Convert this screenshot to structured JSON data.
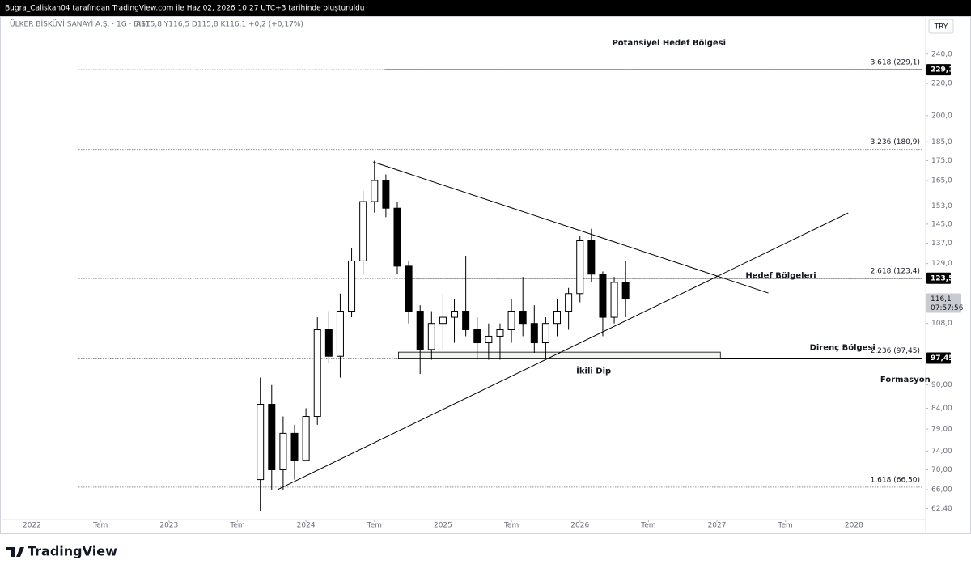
{
  "header": "Bugra_Caliskan04 tarafından TradingView.com ile Haz 02, 2026 10:27 UTC+3 tarihinde oluşturuldu",
  "symbol": "ÜLKER BİSKÜVİ SANAYİ A.Ş. · 1G · BIST",
  "ohlc_text": "A115,8  Y116,5  D115,8  K116,1  +0,2 (+0,17%)",
  "currency": "TRY",
  "brand": "TradingView",
  "chart_data": {
    "type": "candlestick",
    "log_scale": true,
    "color": "#000000",
    "xlim": [
      -2.8,
      78
    ],
    "xticks": [
      {
        "value": 0,
        "label": "2022"
      },
      {
        "value": 6,
        "label": "Tem"
      },
      {
        "value": 12,
        "label": "2023"
      },
      {
        "value": 18,
        "label": "Tem"
      },
      {
        "value": 24,
        "label": "2024"
      },
      {
        "value": 30,
        "label": "Tem"
      },
      {
        "value": 36,
        "label": "2025"
      },
      {
        "value": 42,
        "label": "Tem"
      },
      {
        "value": 48,
        "label": "2026"
      },
      {
        "value": 54,
        "label": "Tem"
      },
      {
        "value": 60,
        "label": "2027"
      },
      {
        "value": 66,
        "label": "Tem"
      },
      {
        "value": 72,
        "label": "2028"
      }
    ],
    "ylim": [
      60.4,
      268.5
    ],
    "yticks": [
      {
        "value": 240,
        "label": "240,0"
      },
      {
        "value": 220,
        "label": "220,0"
      },
      {
        "value": 200,
        "label": "200,0"
      },
      {
        "value": 185,
        "label": "185,0"
      },
      {
        "value": 175,
        "label": "175,0"
      },
      {
        "value": 165,
        "label": "165,0"
      },
      {
        "value": 153,
        "label": "153,0"
      },
      {
        "value": 145,
        "label": "145,0"
      },
      {
        "value": 137,
        "label": "137,0"
      },
      {
        "value": 129,
        "label": "129,0"
      },
      {
        "value": 108,
        "label": "108,0"
      },
      {
        "value": 90,
        "label": "90,00"
      },
      {
        "value": 84,
        "label": "84,00"
      },
      {
        "value": 79,
        "label": "79,00"
      },
      {
        "value": 74,
        "label": "74,00"
      },
      {
        "value": 70,
        "label": "70,00"
      },
      {
        "value": 66,
        "label": "66,00"
      },
      {
        "value": 62.4,
        "label": "62,40"
      }
    ],
    "x": [
      20,
      21,
      22,
      23,
      24,
      25,
      26,
      27,
      28,
      29,
      30,
      31,
      32,
      33,
      34,
      35,
      36,
      37,
      38,
      39,
      40,
      41,
      42,
      43,
      44,
      45,
      46,
      47,
      48,
      49,
      50,
      51,
      52
    ],
    "open": [
      68,
      85,
      70,
      78,
      72,
      82,
      106,
      98,
      112,
      130,
      155,
      165,
      152,
      128,
      112,
      100,
      108,
      110,
      112,
      106,
      102,
      104,
      106,
      112,
      108,
      102,
      108,
      112,
      118,
      138,
      125,
      110,
      122
    ],
    "high": [
      92,
      90,
      82,
      80,
      84,
      110,
      112,
      118,
      135,
      160,
      175,
      168,
      155,
      130,
      114,
      112,
      118,
      116,
      132,
      110,
      108,
      108,
      116,
      124,
      114,
      110,
      116,
      120,
      140,
      143,
      126,
      124,
      130
    ],
    "low": [
      62,
      66,
      66,
      68,
      72,
      80,
      96,
      92,
      110,
      125,
      150,
      148,
      125,
      108,
      93,
      97,
      100,
      102,
      104,
      97,
      97,
      97,
      102,
      104,
      99,
      97,
      104,
      106,
      115,
      122,
      104,
      108,
      110
    ],
    "close": [
      85,
      70,
      78,
      72,
      82,
      106,
      98,
      112,
      130,
      155,
      165,
      152,
      128,
      112,
      100,
      108,
      110,
      112,
      106,
      102,
      104,
      106,
      112,
      108,
      102,
      108,
      112,
      118,
      138,
      125,
      110,
      122,
      116.1
    ],
    "fib_levels": [
      {
        "value": 229.1,
        "label": "3,618 (229,1)"
      },
      {
        "value": 180.9,
        "label": "3,236 (180,9)"
      },
      {
        "value": 123.4,
        "label": "2,618 (123,4)"
      },
      {
        "value": 97.45,
        "label": "2,236 (97,45)"
      },
      {
        "value": 66.5,
        "label": "1,618 (66,50)"
      }
    ],
    "fib_start": 4.1,
    "horizontal_lines": [
      {
        "y": 229.1,
        "x": 30.9
      },
      {
        "y": 123.5,
        "x": 32.6
      },
      {
        "y": 97.45,
        "x": 60.3
      }
    ],
    "trendlines": [
      {
        "x": [
          29.9,
          64.5
        ],
        "y": [
          174.3,
          118.2
        ]
      },
      {
        "x": [
          21.5,
          71.5
        ],
        "y": [
          66,
          149.9
        ]
      }
    ],
    "zone": {
      "x": [
        32.1,
        60.3
      ],
      "y": [
        97.45,
        99.2
      ]
    },
    "price_labels": [
      {
        "value": 229.1,
        "label": "229,1"
      },
      {
        "value": 123.5,
        "label": "123,5"
      },
      {
        "value": 97.45,
        "label": "97,45"
      }
    ],
    "last_price": {
      "value": 116.1,
      "label": "116,1",
      "countdown": "07:57:56"
    },
    "annotations": [
      {
        "text": "Potansiyel Hedef Bölgesi",
        "x": 55.8,
        "y": 248
      },
      {
        "text": "Hedef Bölgeleri",
        "x": 65.6,
        "y": 124.5
      },
      {
        "text": "Direnç Bölgesi",
        "x": 71,
        "y": 100.5
      },
      {
        "text": "İkili Dip",
        "x": 49.2,
        "y": 93.8
      },
      {
        "text": "Formasyon",
        "x": 76.5,
        "y": 91.5
      }
    ]
  }
}
